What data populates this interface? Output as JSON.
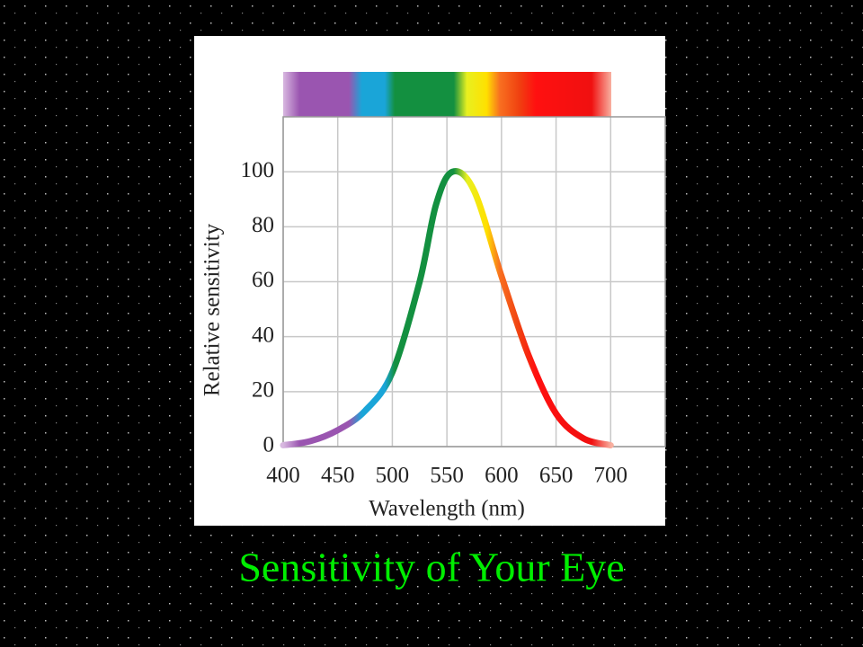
{
  "slide_title": "Sensitivity of Your Eye",
  "chart_data": {
    "type": "line",
    "xlabel": "Wavelength (nm)",
    "ylabel": "Relative sensitivity",
    "x": [
      400,
      425,
      450,
      475,
      500,
      525,
      540,
      555,
      575,
      600,
      625,
      650,
      675,
      700
    ],
    "values": [
      0.5,
      2,
      6,
      13,
      27,
      60,
      88,
      100,
      93,
      62,
      33,
      12,
      3,
      0.5
    ],
    "xlim": [
      400,
      750
    ],
    "ylim": [
      0,
      120
    ],
    "xticks": [
      400,
      450,
      500,
      550,
      600,
      650,
      700
    ],
    "yticks": [
      0,
      20,
      40,
      60,
      80,
      100
    ],
    "grid": true
  }
}
